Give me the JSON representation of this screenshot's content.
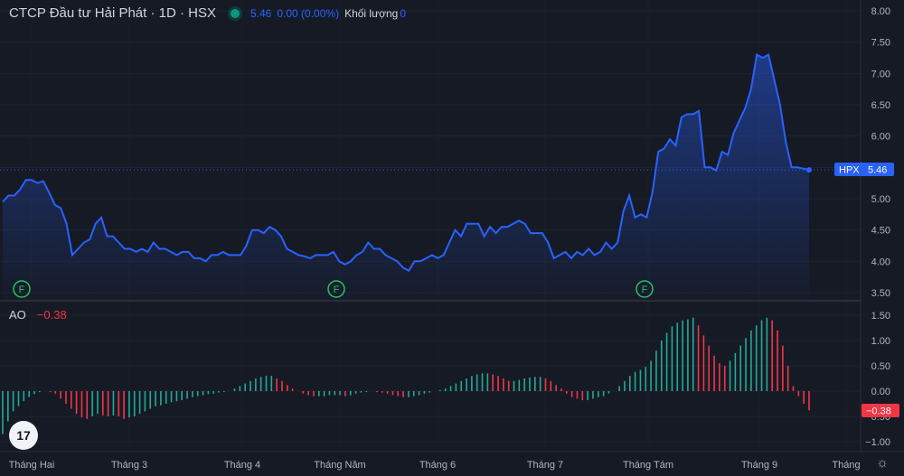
{
  "header": {
    "title": "CTCP Đầu tư Hải Phát · 1D · HSX",
    "last_price": "5.46",
    "change": "0.00 (0.00%)",
    "volume_label": "Khối lượng",
    "volume_value": "0"
  },
  "price_tag": {
    "symbol": "HPX",
    "value": "5.46"
  },
  "ao": {
    "label": "AO",
    "value": "−0.38",
    "tag": "−0.38"
  },
  "price_axis": [
    "8.00",
    "7.50",
    "7.00",
    "6.50",
    "6.00",
    "5.50",
    "5.00",
    "4.50",
    "4.00",
    "3.50"
  ],
  "ao_axis": [
    "1.50",
    "1.00",
    "0.50",
    "0.00",
    "−0.50",
    "−1.00"
  ],
  "time_axis": [
    "Tháng Hai",
    "Tháng 3",
    "Tháng 4",
    "Tháng Năm",
    "Tháng 6",
    "Tháng 7",
    "Tháng Tám",
    "Tháng 9",
    "Tháng"
  ],
  "event_markers": [
    "F",
    "F",
    "F"
  ],
  "icons": {
    "settings": "gear-icon",
    "logo": "tradingview-logo"
  },
  "colors": {
    "line": "#2962ff",
    "ao_up": "#22ab94",
    "ao_down": "#f23645",
    "marker": "#22c55e",
    "background": "#161a25"
  },
  "chart_data": [
    {
      "type": "area",
      "series": [
        {
          "name": "HPX",
          "values": [
            4.95,
            5.05,
            5.05,
            5.15,
            5.3,
            5.3,
            5.25,
            5.28,
            5.1,
            4.9,
            4.85,
            4.6,
            4.1,
            4.2,
            4.3,
            4.35,
            4.6,
            4.7,
            4.4,
            4.4,
            4.3,
            4.2,
            4.2,
            4.15,
            4.2,
            4.15,
            4.3,
            4.2,
            4.2,
            4.15,
            4.1,
            4.15,
            4.15,
            4.05,
            4.05,
            4.0,
            4.1,
            4.1,
            4.15,
            4.1,
            4.1,
            4.1,
            4.25,
            4.5,
            4.5,
            4.45,
            4.55,
            4.5,
            4.4,
            4.2,
            4.15,
            4.1,
            4.08,
            4.05,
            4.1,
            4.1,
            4.1,
            4.15,
            4.0,
            3.95,
            4.0,
            4.1,
            4.15,
            4.3,
            4.2,
            4.2,
            4.1,
            4.05,
            4.0,
            3.9,
            3.85,
            4.0,
            4.0,
            4.05,
            4.1,
            4.05,
            4.1,
            4.3,
            4.5,
            4.4,
            4.6,
            4.6,
            4.6,
            4.4,
            4.55,
            4.45,
            4.55,
            4.55,
            4.6,
            4.65,
            4.6,
            4.45,
            4.45,
            4.45,
            4.3,
            4.05,
            4.1,
            4.15,
            4.05,
            4.15,
            4.1,
            4.2,
            4.1,
            4.15,
            4.3,
            4.2,
            4.3,
            4.8,
            5.05,
            4.7,
            4.75,
            4.7,
            5.1,
            5.75,
            5.8,
            5.95,
            5.85,
            6.3,
            6.35,
            6.35,
            6.4,
            5.5,
            5.5,
            5.45,
            5.75,
            5.7,
            6.05,
            6.25,
            6.45,
            6.75,
            7.3,
            7.25,
            7.3,
            6.9,
            6.5,
            5.9,
            5.5,
            5.5,
            5.48,
            5.46
          ]
        }
      ],
      "x_labels": [
        "Tháng Hai",
        "Tháng 3",
        "Tháng 4",
        "Tháng Năm",
        "Tháng 6",
        "Tháng 7",
        "Tháng Tám",
        "Tháng 9",
        "Tháng"
      ],
      "ylim": [
        3.4,
        8.05
      ],
      "last_value": 5.46
    },
    {
      "type": "bar",
      "series": [
        {
          "name": "AO",
          "values": [
            -0.85,
            -0.6,
            -0.4,
            -0.3,
            -0.2,
            -0.12,
            -0.06,
            -0.02,
            0.0,
            -0.02,
            -0.05,
            -0.15,
            -0.25,
            -0.35,
            -0.45,
            -0.52,
            -0.55,
            -0.5,
            -0.45,
            -0.48,
            -0.5,
            -0.48,
            -0.5,
            -0.55,
            -0.52,
            -0.5,
            -0.45,
            -0.4,
            -0.35,
            -0.3,
            -0.28,
            -0.25,
            -0.22,
            -0.2,
            -0.18,
            -0.15,
            -0.12,
            -0.1,
            -0.08,
            -0.06,
            -0.05,
            -0.03,
            -0.02,
            0.0,
            0.05,
            0.1,
            0.15,
            0.2,
            0.25,
            0.28,
            0.3,
            0.3,
            0.25,
            0.2,
            0.12,
            0.05,
            0.0,
            -0.05,
            -0.08,
            -0.1,
            -0.1,
            -0.1,
            -0.08,
            -0.08,
            -0.08,
            -0.1,
            -0.08,
            -0.05,
            -0.03,
            -0.02,
            0.0,
            -0.02,
            -0.03,
            -0.05,
            -0.08,
            -0.1,
            -0.12,
            -0.12,
            -0.1,
            -0.08,
            -0.05,
            -0.03,
            0.0,
            0.02,
            0.05,
            0.1,
            0.15,
            0.2,
            0.25,
            0.3,
            0.33,
            0.35,
            0.35,
            0.33,
            0.3,
            0.25,
            0.2,
            0.2,
            0.22,
            0.25,
            0.27,
            0.28,
            0.28,
            0.25,
            0.2,
            0.12,
            0.05,
            -0.05,
            -0.12,
            -0.15,
            -0.18,
            -0.18,
            -0.15,
            -0.12,
            -0.1,
            -0.05,
            0.0,
            0.1,
            0.2,
            0.3,
            0.38,
            0.42,
            0.48,
            0.6,
            0.8,
            1.0,
            1.15,
            1.28,
            1.35,
            1.4,
            1.42,
            1.45,
            1.3,
            1.1,
            0.9,
            0.7,
            0.55,
            0.5,
            0.6,
            0.75,
            0.9,
            1.05,
            1.2,
            1.3,
            1.4,
            1.45,
            1.4,
            1.2,
            0.9,
            0.5,
            0.1,
            -0.1,
            -0.25,
            -0.38
          ]
        }
      ],
      "ylim": [
        -1.1,
        1.65
      ],
      "last_value": -0.38
    }
  ]
}
